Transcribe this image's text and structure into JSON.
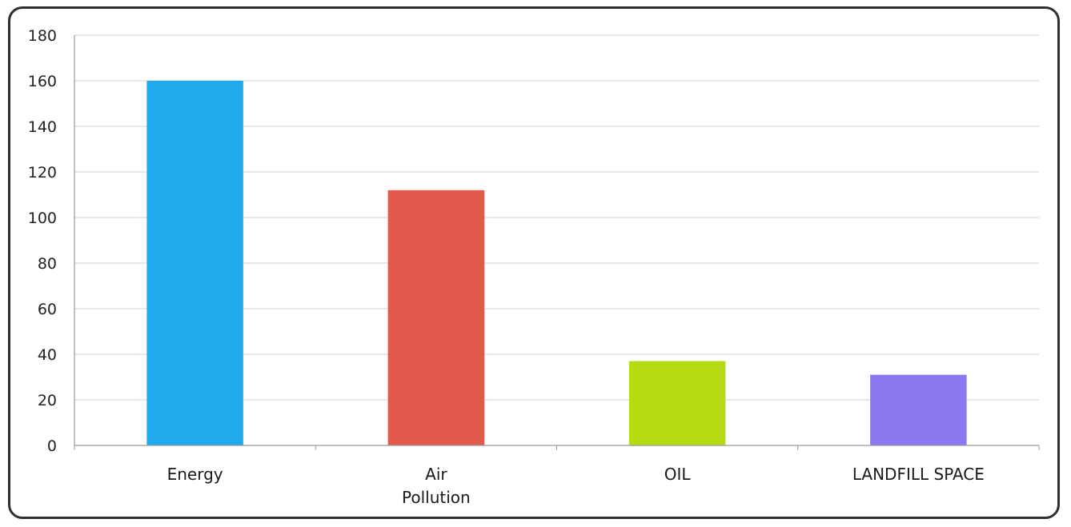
{
  "chart_data": {
    "type": "bar",
    "categories": [
      "Energy",
      "Air Pollution",
      "OIL",
      "LANDFILL SPACE"
    ],
    "category_lines": [
      [
        "Energy"
      ],
      [
        "Air",
        "Pollution"
      ],
      [
        "OIL"
      ],
      [
        "LANDFILL SPACE"
      ]
    ],
    "values": [
      160,
      112,
      37,
      31
    ],
    "colors": [
      "#1eaaec",
      "#e25a4c",
      "#b5dc12",
      "#8a78f0"
    ],
    "title": "",
    "xlabel": "",
    "ylabel": "",
    "ylim": [
      0,
      180
    ],
    "yticks": [
      0,
      20,
      40,
      60,
      80,
      100,
      120,
      140,
      160,
      180
    ],
    "grid": true,
    "legend": "none"
  }
}
